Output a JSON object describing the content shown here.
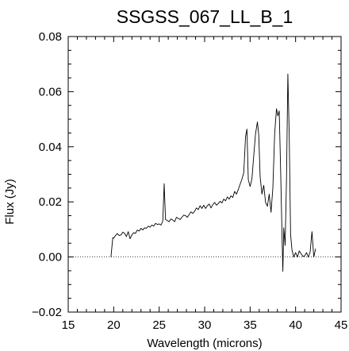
{
  "chart_data": {
    "type": "line",
    "title": "SSGSS_067_LL_B_1",
    "xlabel": "Wavelength (microns)",
    "ylabel": "Flux (Jy)",
    "xlim": [
      15,
      45
    ],
    "ylim": [
      -0.02,
      0.08
    ],
    "x_ticks": [
      15,
      20,
      25,
      30,
      35,
      40,
      45
    ],
    "x_tick_labels": [
      "15",
      "20",
      "25",
      "30",
      "35",
      "40",
      "45"
    ],
    "y_ticks": [
      -0.02,
      0.0,
      0.02,
      0.04,
      0.06,
      0.08
    ],
    "y_tick_labels": [
      "−0.02",
      "0.00",
      "0.02",
      "0.04",
      "0.06",
      "0.08"
    ],
    "zero_line": {
      "y": 0.0,
      "style": "dotted"
    },
    "grid": false,
    "series": [
      {
        "x": [
          19.7,
          19.9,
          20.0,
          20.2,
          20.4,
          20.6,
          20.8,
          21.0,
          21.2,
          21.4,
          21.6,
          21.8,
          22.0,
          22.2,
          22.4,
          22.6,
          22.8,
          23.0,
          23.2,
          23.4,
          23.6,
          23.8,
          24.0,
          24.2,
          24.4,
          24.6,
          24.8,
          25.0,
          25.2,
          25.4,
          25.55,
          25.7,
          25.9,
          26.1,
          26.3,
          26.5,
          26.7,
          26.9,
          27.1,
          27.3,
          27.5,
          27.7,
          27.9,
          28.1,
          28.3,
          28.5,
          28.7,
          28.9,
          29.1,
          29.3,
          29.5,
          29.7,
          29.9,
          30.1,
          30.3,
          30.5,
          30.7,
          30.9,
          31.1,
          31.3,
          31.5,
          31.7,
          31.9,
          32.1,
          32.3,
          32.5,
          32.7,
          32.9,
          33.1,
          33.3,
          33.5,
          33.7,
          33.9,
          34.1,
          34.3,
          34.5,
          34.65,
          34.8,
          35.0,
          35.2,
          35.4,
          35.6,
          35.8,
          35.95,
          36.1,
          36.3,
          36.5,
          36.7,
          36.9,
          37.1,
          37.3,
          37.5,
          37.7,
          37.9,
          38.05,
          38.2,
          38.35,
          38.5,
          38.6,
          38.7,
          38.85,
          39.0,
          39.15,
          39.3,
          39.45,
          39.6,
          39.8,
          40.0,
          40.2,
          40.4,
          40.6,
          40.8,
          41.0,
          41.2,
          41.4,
          41.6,
          41.8,
          42.0,
          42.2
        ],
        "y": [
          0.0,
          0.007,
          0.0068,
          0.0078,
          0.0085,
          0.0078,
          0.008,
          0.009,
          0.0086,
          0.0074,
          0.0092,
          0.0066,
          0.008,
          0.0088,
          0.0086,
          0.0098,
          0.0094,
          0.0104,
          0.0098,
          0.0106,
          0.0104,
          0.0112,
          0.0108,
          0.0116,
          0.0112,
          0.0122,
          0.0118,
          0.012,
          0.0116,
          0.013,
          0.0266,
          0.0136,
          0.0132,
          0.0128,
          0.0138,
          0.0134,
          0.0128,
          0.0144,
          0.014,
          0.0136,
          0.0144,
          0.0152,
          0.015,
          0.0144,
          0.0154,
          0.0164,
          0.0158,
          0.0166,
          0.0178,
          0.0172,
          0.0186,
          0.0176,
          0.0188,
          0.0176,
          0.0186,
          0.0192,
          0.0178,
          0.019,
          0.0198,
          0.0188,
          0.0194,
          0.0202,
          0.0196,
          0.021,
          0.0204,
          0.0218,
          0.021,
          0.0222,
          0.0216,
          0.0238,
          0.0228,
          0.0245,
          0.0264,
          0.0282,
          0.0306,
          0.0438,
          0.0464,
          0.028,
          0.0256,
          0.0284,
          0.0368,
          0.0448,
          0.049,
          0.0442,
          0.0292,
          0.0228,
          0.026,
          0.0198,
          0.0184,
          0.0228,
          0.0162,
          0.025,
          0.0448,
          0.0538,
          0.0512,
          0.053,
          0.0322,
          0.0092,
          -0.0052,
          0.0106,
          0.0042,
          0.0282,
          0.0664,
          0.0442,
          0.0082,
          0.0026,
          0.0,
          0.0016,
          0.0,
          0.0022,
          0.0012,
          0.0002,
          0.0004,
          0.0016,
          0.0,
          0.0018,
          0.0092,
          0.0,
          0.003
        ]
      }
    ]
  }
}
